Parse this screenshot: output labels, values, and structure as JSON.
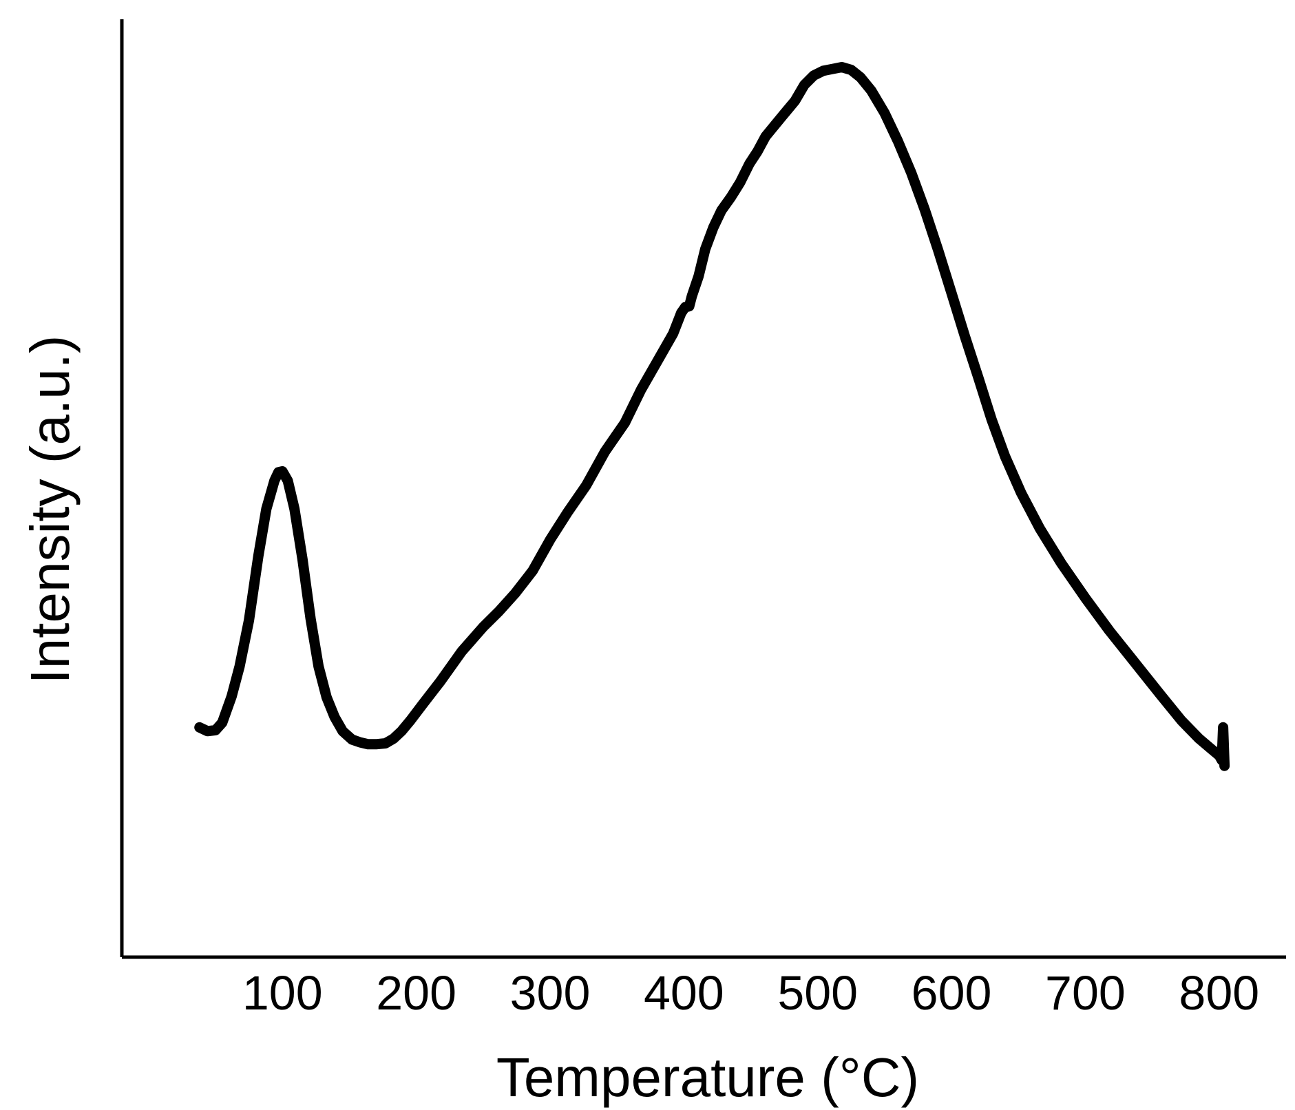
{
  "chart_data": {
    "type": "line",
    "title": "",
    "xlabel": "Temperature (°C)",
    "ylabel": "Intensity (a.u.)",
    "xlim": [
      -20,
      850
    ],
    "ylim": [
      0,
      100
    ],
    "x_ticks": [
      100,
      200,
      300,
      400,
      500,
      600,
      700,
      800
    ],
    "x_tick_labels": [
      "100",
      "200",
      "300",
      "400",
      "500",
      "600",
      "700",
      "800"
    ],
    "y_ticks": [],
    "grid": false,
    "legend": "none",
    "colors": {
      "line": "#000000",
      "axis": "#000000",
      "text": "#000000",
      "background": "#ffffff"
    },
    "series": [
      {
        "x": [
          38,
          44,
          50,
          55,
          62,
          68,
          75,
          82,
          88,
          94,
          97,
          100,
          104,
          109,
          115,
          121,
          127,
          133,
          139,
          145,
          152,
          158,
          164,
          170,
          177,
          183,
          189,
          196,
          205,
          218,
          234,
          250,
          262,
          274,
          287,
          300,
          313,
          327,
          341,
          356,
          368,
          380,
          392,
          398,
          401,
          404,
          406,
          411,
          416,
          422,
          428,
          435,
          442,
          449,
          455,
          461,
          469,
          476,
          483,
          490,
          497,
          504,
          511,
          518,
          525,
          532,
          540,
          550,
          560,
          570,
          580,
          590,
          600,
          610,
          620,
          630,
          640,
          652,
          666,
          682,
          700,
          718,
          737,
          756,
          772,
          785,
          794,
          800,
          802,
          803,
          804
        ],
        "y": [
          24.5,
          24.1,
          24.2,
          25.0,
          27.8,
          31.0,
          35.9,
          42.8,
          47.8,
          50.8,
          51.7,
          51.8,
          50.8,
          47.8,
          42.4,
          36.1,
          31.0,
          27.7,
          25.6,
          24.1,
          23.2,
          22.9,
          22.7,
          22.7,
          22.8,
          23.3,
          24.1,
          25.3,
          27.0,
          29.4,
          32.6,
          35.2,
          36.9,
          38.8,
          41.2,
          44.5,
          47.4,
          50.3,
          53.9,
          57.0,
          60.5,
          63.5,
          66.5,
          68.7,
          69.3,
          69.4,
          70.5,
          72.6,
          75.5,
          77.8,
          79.6,
          81.0,
          82.6,
          84.6,
          85.9,
          87.5,
          88.9,
          90.1,
          91.3,
          93.0,
          94.0,
          94.5,
          94.7,
          94.9,
          94.6,
          93.8,
          92.4,
          90.0,
          87.0,
          83.6,
          79.7,
          75.4,
          70.8,
          66.2,
          61.8,
          57.3,
          53.4,
          49.5,
          45.7,
          42.0,
          38.3,
          34.8,
          31.4,
          28.0,
          25.2,
          23.3,
          22.2,
          21.5,
          21.0,
          24.5,
          20.4
        ]
      }
    ]
  }
}
